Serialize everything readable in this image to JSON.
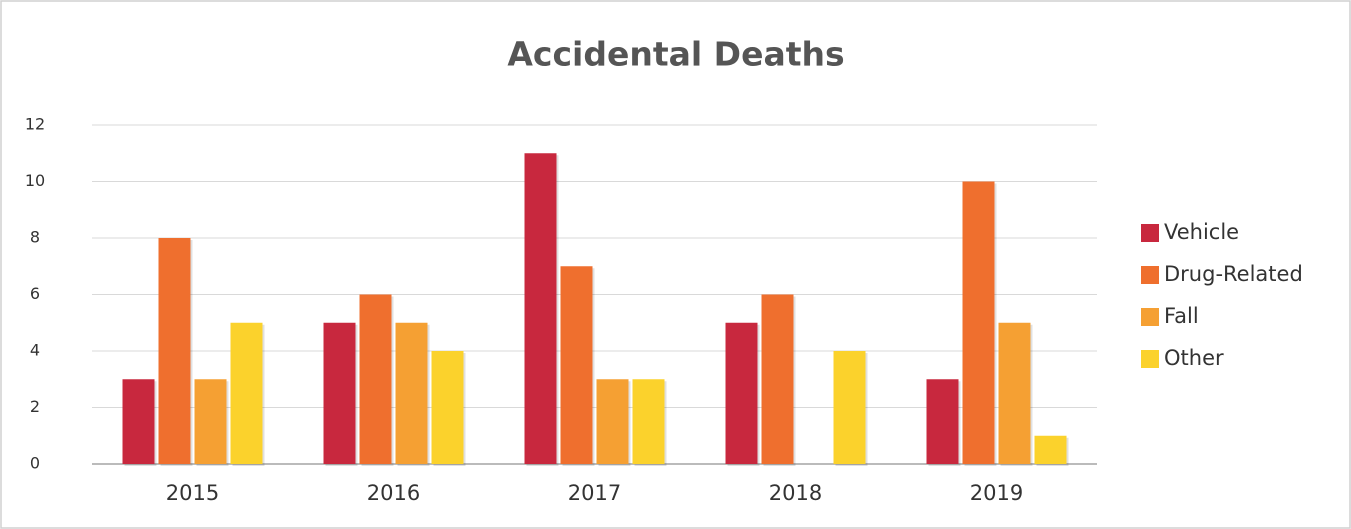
{
  "chart_data": {
    "type": "bar",
    "title": "Accidental Deaths",
    "categories": [
      "2015",
      "2016",
      "2017",
      "2018",
      "2019"
    ],
    "series": [
      {
        "name": "Vehicle",
        "color": "#c8283e",
        "values": [
          3,
          5,
          11,
          5,
          3
        ]
      },
      {
        "name": "Drug-Related",
        "color": "#ef6f2e",
        "values": [
          8,
          6,
          7,
          6,
          10
        ]
      },
      {
        "name": "Fall",
        "color": "#f5a033",
        "values": [
          3,
          5,
          3,
          0,
          5
        ]
      },
      {
        "name": "Other",
        "color": "#fbd22c",
        "values": [
          5,
          4,
          3,
          4,
          1
        ]
      }
    ],
    "ylim": [
      0,
      12
    ],
    "yticks": [
      0,
      2,
      4,
      6,
      8,
      10,
      12
    ],
    "grid": true,
    "legend": "right"
  }
}
